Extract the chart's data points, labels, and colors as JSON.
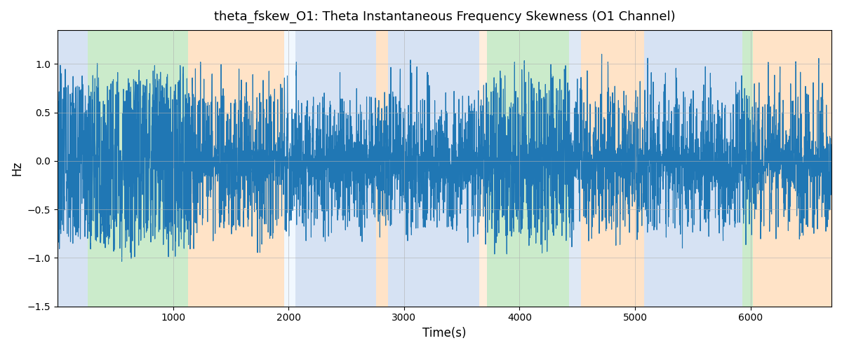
{
  "title": "theta_fskew_O1: Theta Instantaneous Frequency Skewness (O1 Channel)",
  "xlabel": "Time(s)",
  "ylabel": "Hz",
  "ylim": [
    -1.5,
    1.35
  ],
  "xlim": [
    0,
    6700
  ],
  "line_color": "#2077b4",
  "line_width": 0.8,
  "grid_color": "#b0b0b0",
  "bg_regions": [
    {
      "xmin": 0,
      "xmax": 260,
      "color": "#aec6e8",
      "alpha": 0.5
    },
    {
      "xmin": 260,
      "xmax": 1130,
      "color": "#98d898",
      "alpha": 0.5
    },
    {
      "xmin": 1130,
      "xmax": 1960,
      "color": "#ffc990",
      "alpha": 0.5
    },
    {
      "xmin": 1960,
      "xmax": 2060,
      "color": "#ddeeff",
      "alpha": 0.4
    },
    {
      "xmin": 2060,
      "xmax": 2760,
      "color": "#aec6e8",
      "alpha": 0.5
    },
    {
      "xmin": 2760,
      "xmax": 2860,
      "color": "#ffc990",
      "alpha": 0.5
    },
    {
      "xmin": 2860,
      "xmax": 3650,
      "color": "#aec6e8",
      "alpha": 0.5
    },
    {
      "xmin": 3650,
      "xmax": 3720,
      "color": "#ffc990",
      "alpha": 0.3
    },
    {
      "xmin": 3720,
      "xmax": 4430,
      "color": "#98d898",
      "alpha": 0.5
    },
    {
      "xmin": 4430,
      "xmax": 4530,
      "color": "#aec6e8",
      "alpha": 0.4
    },
    {
      "xmin": 4530,
      "xmax": 5080,
      "color": "#ffc990",
      "alpha": 0.5
    },
    {
      "xmin": 5080,
      "xmax": 5930,
      "color": "#aec6e8",
      "alpha": 0.5
    },
    {
      "xmin": 5930,
      "xmax": 6020,
      "color": "#98d898",
      "alpha": 0.5
    },
    {
      "xmin": 6020,
      "xmax": 6700,
      "color": "#ffc990",
      "alpha": 0.5
    }
  ],
  "seed": 42,
  "n_points": 6500,
  "xticks": [
    1000,
    2000,
    3000,
    4000,
    5000,
    6000
  ]
}
